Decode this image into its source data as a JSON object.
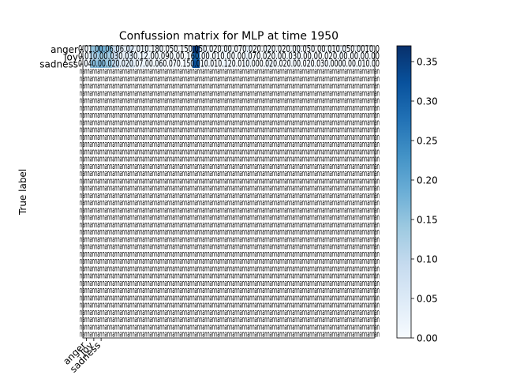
{
  "chart_data": {
    "type": "heatmap",
    "title": "Confussion matrix for MLP at time 1950",
    "xlabel": "",
    "ylabel": "True label",
    "y_tick_labels": [
      "anger",
      "joy",
      "sadness"
    ],
    "x_tick_labels": [
      "anger",
      "joy",
      "sadness"
    ],
    "colormap": "Blues",
    "colorbar": {
      "range": [
        0,
        0.37
      ],
      "ticks": [
        "0.00",
        "0.05",
        "0.10",
        "0.15",
        "0.20",
        "0.25",
        "0.30",
        "0.35"
      ]
    },
    "cols": 40,
    "rows": 40,
    "values": [
      [
        0.01,
        0.15,
        0.18,
        0.16,
        0.09,
        0.04,
        0.06,
        0.02,
        0.03,
        0.01,
        0.02,
        0.0,
        0.01,
        0.0,
        0.01,
        0.36,
        0.02,
        0.01,
        0.0,
        0.02,
        0.01,
        0.0,
        0.03,
        0.01,
        0.0,
        0.02,
        0.01,
        0.0,
        0.01,
        0.02,
        0.0,
        0.01,
        0.0,
        0.01,
        0.0,
        0.02,
        0.0,
        0.01,
        0.0,
        0.0
      ],
      [
        0.01,
        0.12,
        0.14,
        0.13,
        0.08,
        0.03,
        0.05,
        0.02,
        0.02,
        0.01,
        0.01,
        0.0,
        0.01,
        0.0,
        0.01,
        0.3,
        0.01,
        0.01,
        0.0,
        0.01,
        0.0,
        0.0,
        0.02,
        0.01,
        0.0,
        0.01,
        0.01,
        0.0,
        0.01,
        0.01,
        0.0,
        0.01,
        0.0,
        0.0,
        0.0,
        0.01,
        0.0,
        0.0,
        0.0,
        0.0
      ],
      [
        0.01,
        0.16,
        0.17,
        0.15,
        0.1,
        0.04,
        0.05,
        0.02,
        0.02,
        0.01,
        0.02,
        0.0,
        0.01,
        0.0,
        0.01,
        0.33,
        0.02,
        0.01,
        0.0,
        0.02,
        0.01,
        0.0,
        0.02,
        0.01,
        0.0,
        0.02,
        0.01,
        0.0,
        0.01,
        0.01,
        0.0,
        0.01,
        0.0,
        0.01,
        0.0,
        0.01,
        0.0,
        0.01,
        0.0,
        0.0
      ]
    ],
    "nan_text": "nan",
    "row_texts": [
      "0.01.00.06.06.02.010.180.050.150.050.020.00.070.020.020.020.00.050.00.010.050.0010.0",
      "0.010.00.030.030.12.00.090.00.160.00.010.00.00.070.020.00.030.00.00.020.00.00.00.00",
      "0.040.00.020.020.07.00.060.070.150.010.010.120.010.000.020.020.00.020.030.0000.00.010.00"
    ],
    "nan_rows": 37
  }
}
